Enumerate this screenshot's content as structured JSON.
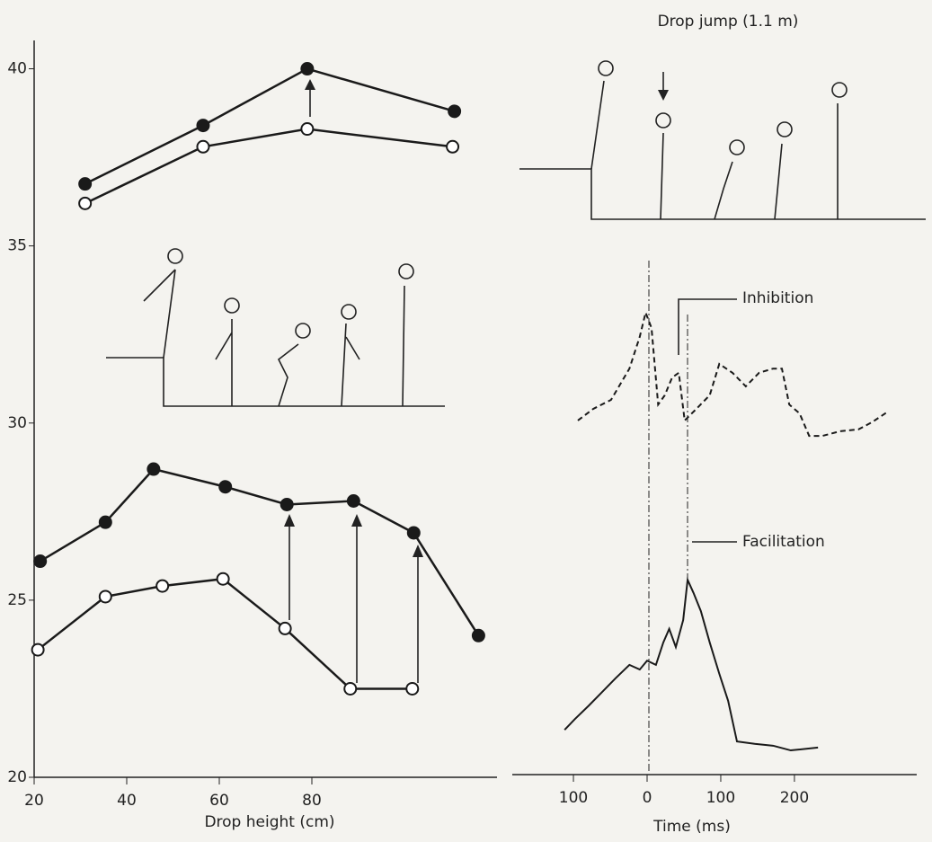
{
  "chart_data": [
    {
      "type": "line",
      "xlabel": "Drop height (cm)",
      "xlim": [
        20,
        120
      ],
      "ylim": [
        20,
        40.8
      ],
      "xticks": [
        20,
        40,
        60,
        80
      ],
      "yticks": [
        20,
        25,
        30,
        35,
        40
      ],
      "series": [
        {
          "marker": "filled",
          "color": "#1a1a1a",
          "x": [
            31,
            56.5,
            79,
            110.8
          ],
          "values": [
            36.75,
            38.4,
            40,
            38.8
          ]
        },
        {
          "marker": "open",
          "color": "#1a1a1a",
          "x": [
            31,
            56.5,
            79,
            110.4
          ],
          "values": [
            36.2,
            37.8,
            38.3,
            37.8
          ]
        },
        {
          "marker": "filled",
          "color": "#1a1a1a",
          "x": [
            21.3,
            35.4,
            45.8,
            61.3,
            74.6,
            89,
            102,
            116
          ],
          "values": [
            26.1,
            27.2,
            28.7,
            28.2,
            27.7,
            27.8,
            26.9,
            24.0
          ]
        },
        {
          "marker": "open",
          "color": "#1a1a1a",
          "x": [
            20.8,
            35.4,
            47.7,
            60.8,
            74.2,
            88.3,
            101.7
          ],
          "values": [
            23.6,
            25.1,
            25.4,
            25.6,
            24.2,
            22.5,
            22.5
          ]
        }
      ]
    },
    {
      "type": "line",
      "title": "Drop jump (1.1 m)",
      "xlabel": "Time (ms)",
      "xlim": [
        -183,
        366
      ],
      "ylim": [
        0,
        100
      ],
      "xticks": [
        {
          "value": -100,
          "label": "100"
        },
        0,
        100,
        200
      ],
      "annotations": [
        "Inhibition",
        "Facilitation"
      ],
      "series": [
        {
          "dash": true,
          "color": "#1a1a1a",
          "x": [
            -94,
            -73,
            -49,
            -24,
            -10,
            -2,
            6,
            15,
            24,
            34,
            43,
            51,
            67,
            85,
            98,
            116,
            134,
            152,
            171,
            183,
            193,
            207,
            220,
            238,
            262,
            287,
            305,
            327
          ],
          "values": [
            75.4,
            77.9,
            79.8,
            86.5,
            93.3,
            98.5,
            95.2,
            78.8,
            80.8,
            84.6,
            85.6,
            75.4,
            77.9,
            80.8,
            87.5,
            85.6,
            82.7,
            85.6,
            86.5,
            86.5,
            78.8,
            76.9,
            72.1,
            72.1,
            73.1,
            73.5,
            75,
            77.3
          ]
        },
        {
          "dash": false,
          "color": "#1a1a1a",
          "x": [
            -112,
            -98,
            -79,
            -61,
            -43,
            -24,
            -10,
            0,
            12,
            22,
            30,
            39,
            49,
            55,
            63,
            73,
            85,
            98,
            110,
            122,
            146,
            171,
            195,
            232
          ],
          "values": [
            9.2,
            11.5,
            14.4,
            17.3,
            20.2,
            23.1,
            22.1,
            24,
            23.1,
            27.9,
            30.8,
            26.9,
            32.7,
            41.3,
            38.5,
            34.6,
            27.9,
            21.2,
            15.4,
            6.7,
            6.2,
            5.8,
            4.8,
            5.4
          ]
        }
      ]
    }
  ]
}
